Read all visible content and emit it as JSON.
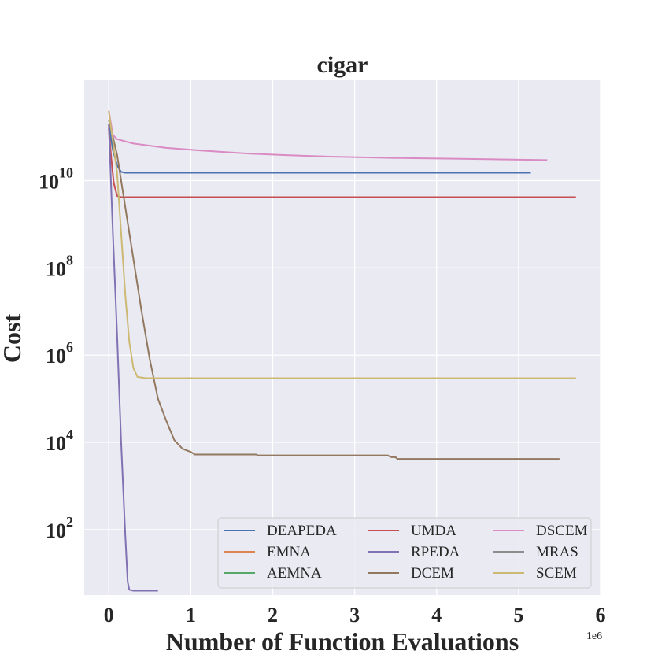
{
  "chart_data": {
    "type": "line",
    "title": "cigar",
    "xlabel": "Number of Function Evaluations",
    "ylabel": "Cost",
    "x_offset_label": "1e6",
    "x_scale": 1000000,
    "xlim": [
      -0.3,
      6
    ],
    "x_ticks": [
      "0",
      "1",
      "2",
      "3",
      "4",
      "5",
      "6"
    ],
    "y_scale": "log",
    "ylim_log10": [
      0.5,
      12.3
    ],
    "y_ticks": [
      {
        "base": "10",
        "exp": "2",
        "log10": 2
      },
      {
        "base": "10",
        "exp": "4",
        "log10": 4
      },
      {
        "base": "10",
        "exp": "6",
        "log10": 6
      },
      {
        "base": "10",
        "exp": "8",
        "log10": 8
      },
      {
        "base": "10",
        "exp": "10",
        "log10": 10
      }
    ],
    "grid": true,
    "legend_position": "lower-right",
    "legend_columns": 3,
    "series": [
      {
        "name": "DEAPEDA",
        "color": "#4c72b0",
        "points_log10": [
          [
            0,
            11.3
          ],
          [
            0.05,
            10.7
          ],
          [
            0.1,
            10.35
          ],
          [
            0.15,
            10.2
          ],
          [
            0.2,
            10.18
          ],
          [
            1,
            10.18
          ],
          [
            2,
            10.18
          ],
          [
            3,
            10.18
          ],
          [
            4,
            10.18
          ],
          [
            5.15,
            10.18
          ]
        ]
      },
      {
        "name": "EMNA",
        "color": "#dd8452",
        "points_log10": []
      },
      {
        "name": "AEMNA",
        "color": "#55a868",
        "points_log10": []
      },
      {
        "name": "UMDA",
        "color": "#c44e52",
        "points_log10": [
          [
            0,
            11.2
          ],
          [
            0.03,
            10.5
          ],
          [
            0.06,
            9.95
          ],
          [
            0.1,
            9.65
          ],
          [
            0.15,
            9.62
          ],
          [
            1,
            9.62
          ],
          [
            3,
            9.62
          ],
          [
            5.7,
            9.62
          ]
        ]
      },
      {
        "name": "RPEDA",
        "color": "#8172b3",
        "points_log10": [
          [
            0,
            11.3
          ],
          [
            0.05,
            8.8
          ],
          [
            0.1,
            6.5
          ],
          [
            0.15,
            4.0
          ],
          [
            0.2,
            1.9
          ],
          [
            0.23,
            0.8
          ],
          [
            0.25,
            0.62
          ],
          [
            0.3,
            0.6
          ],
          [
            0.6,
            0.6
          ]
        ]
      },
      {
        "name": "DCEM",
        "color": "#937860",
        "points_log10": [
          [
            0,
            11.4
          ],
          [
            0.1,
            10.6
          ],
          [
            0.2,
            9.4
          ],
          [
            0.3,
            8.2
          ],
          [
            0.4,
            7.0
          ],
          [
            0.5,
            5.9
          ],
          [
            0.6,
            5.0
          ],
          [
            0.7,
            4.5
          ],
          [
            0.8,
            4.05
          ],
          [
            0.9,
            3.85
          ],
          [
            1.0,
            3.78
          ],
          [
            1.05,
            3.72
          ],
          [
            1.8,
            3.72
          ],
          [
            1.82,
            3.7
          ],
          [
            3.4,
            3.7
          ],
          [
            3.45,
            3.66
          ],
          [
            3.5,
            3.66
          ],
          [
            3.52,
            3.62
          ],
          [
            5.5,
            3.62
          ]
        ]
      },
      {
        "name": "DSCEM",
        "color": "#da8bc3",
        "points_log10": [
          [
            0,
            11.6
          ],
          [
            0.05,
            11.05
          ],
          [
            0.1,
            10.95
          ],
          [
            0.3,
            10.85
          ],
          [
            0.7,
            10.75
          ],
          [
            1.2,
            10.68
          ],
          [
            1.7,
            10.62
          ],
          [
            2.2,
            10.58
          ],
          [
            2.7,
            10.55
          ],
          [
            3.5,
            10.52
          ],
          [
            4.3,
            10.5
          ],
          [
            5.35,
            10.47
          ]
        ]
      },
      {
        "name": "MRAS",
        "color": "#8c8c8c",
        "points_log10": []
      },
      {
        "name": "SCEM",
        "color": "#ccb974",
        "points_log10": [
          [
            0,
            11.6
          ],
          [
            0.1,
            10.2
          ],
          [
            0.15,
            8.8
          ],
          [
            0.2,
            7.4
          ],
          [
            0.25,
            6.3
          ],
          [
            0.3,
            5.7
          ],
          [
            0.35,
            5.5
          ],
          [
            0.45,
            5.47
          ],
          [
            1,
            5.47
          ],
          [
            3,
            5.47
          ],
          [
            5.7,
            5.47
          ]
        ]
      }
    ]
  }
}
